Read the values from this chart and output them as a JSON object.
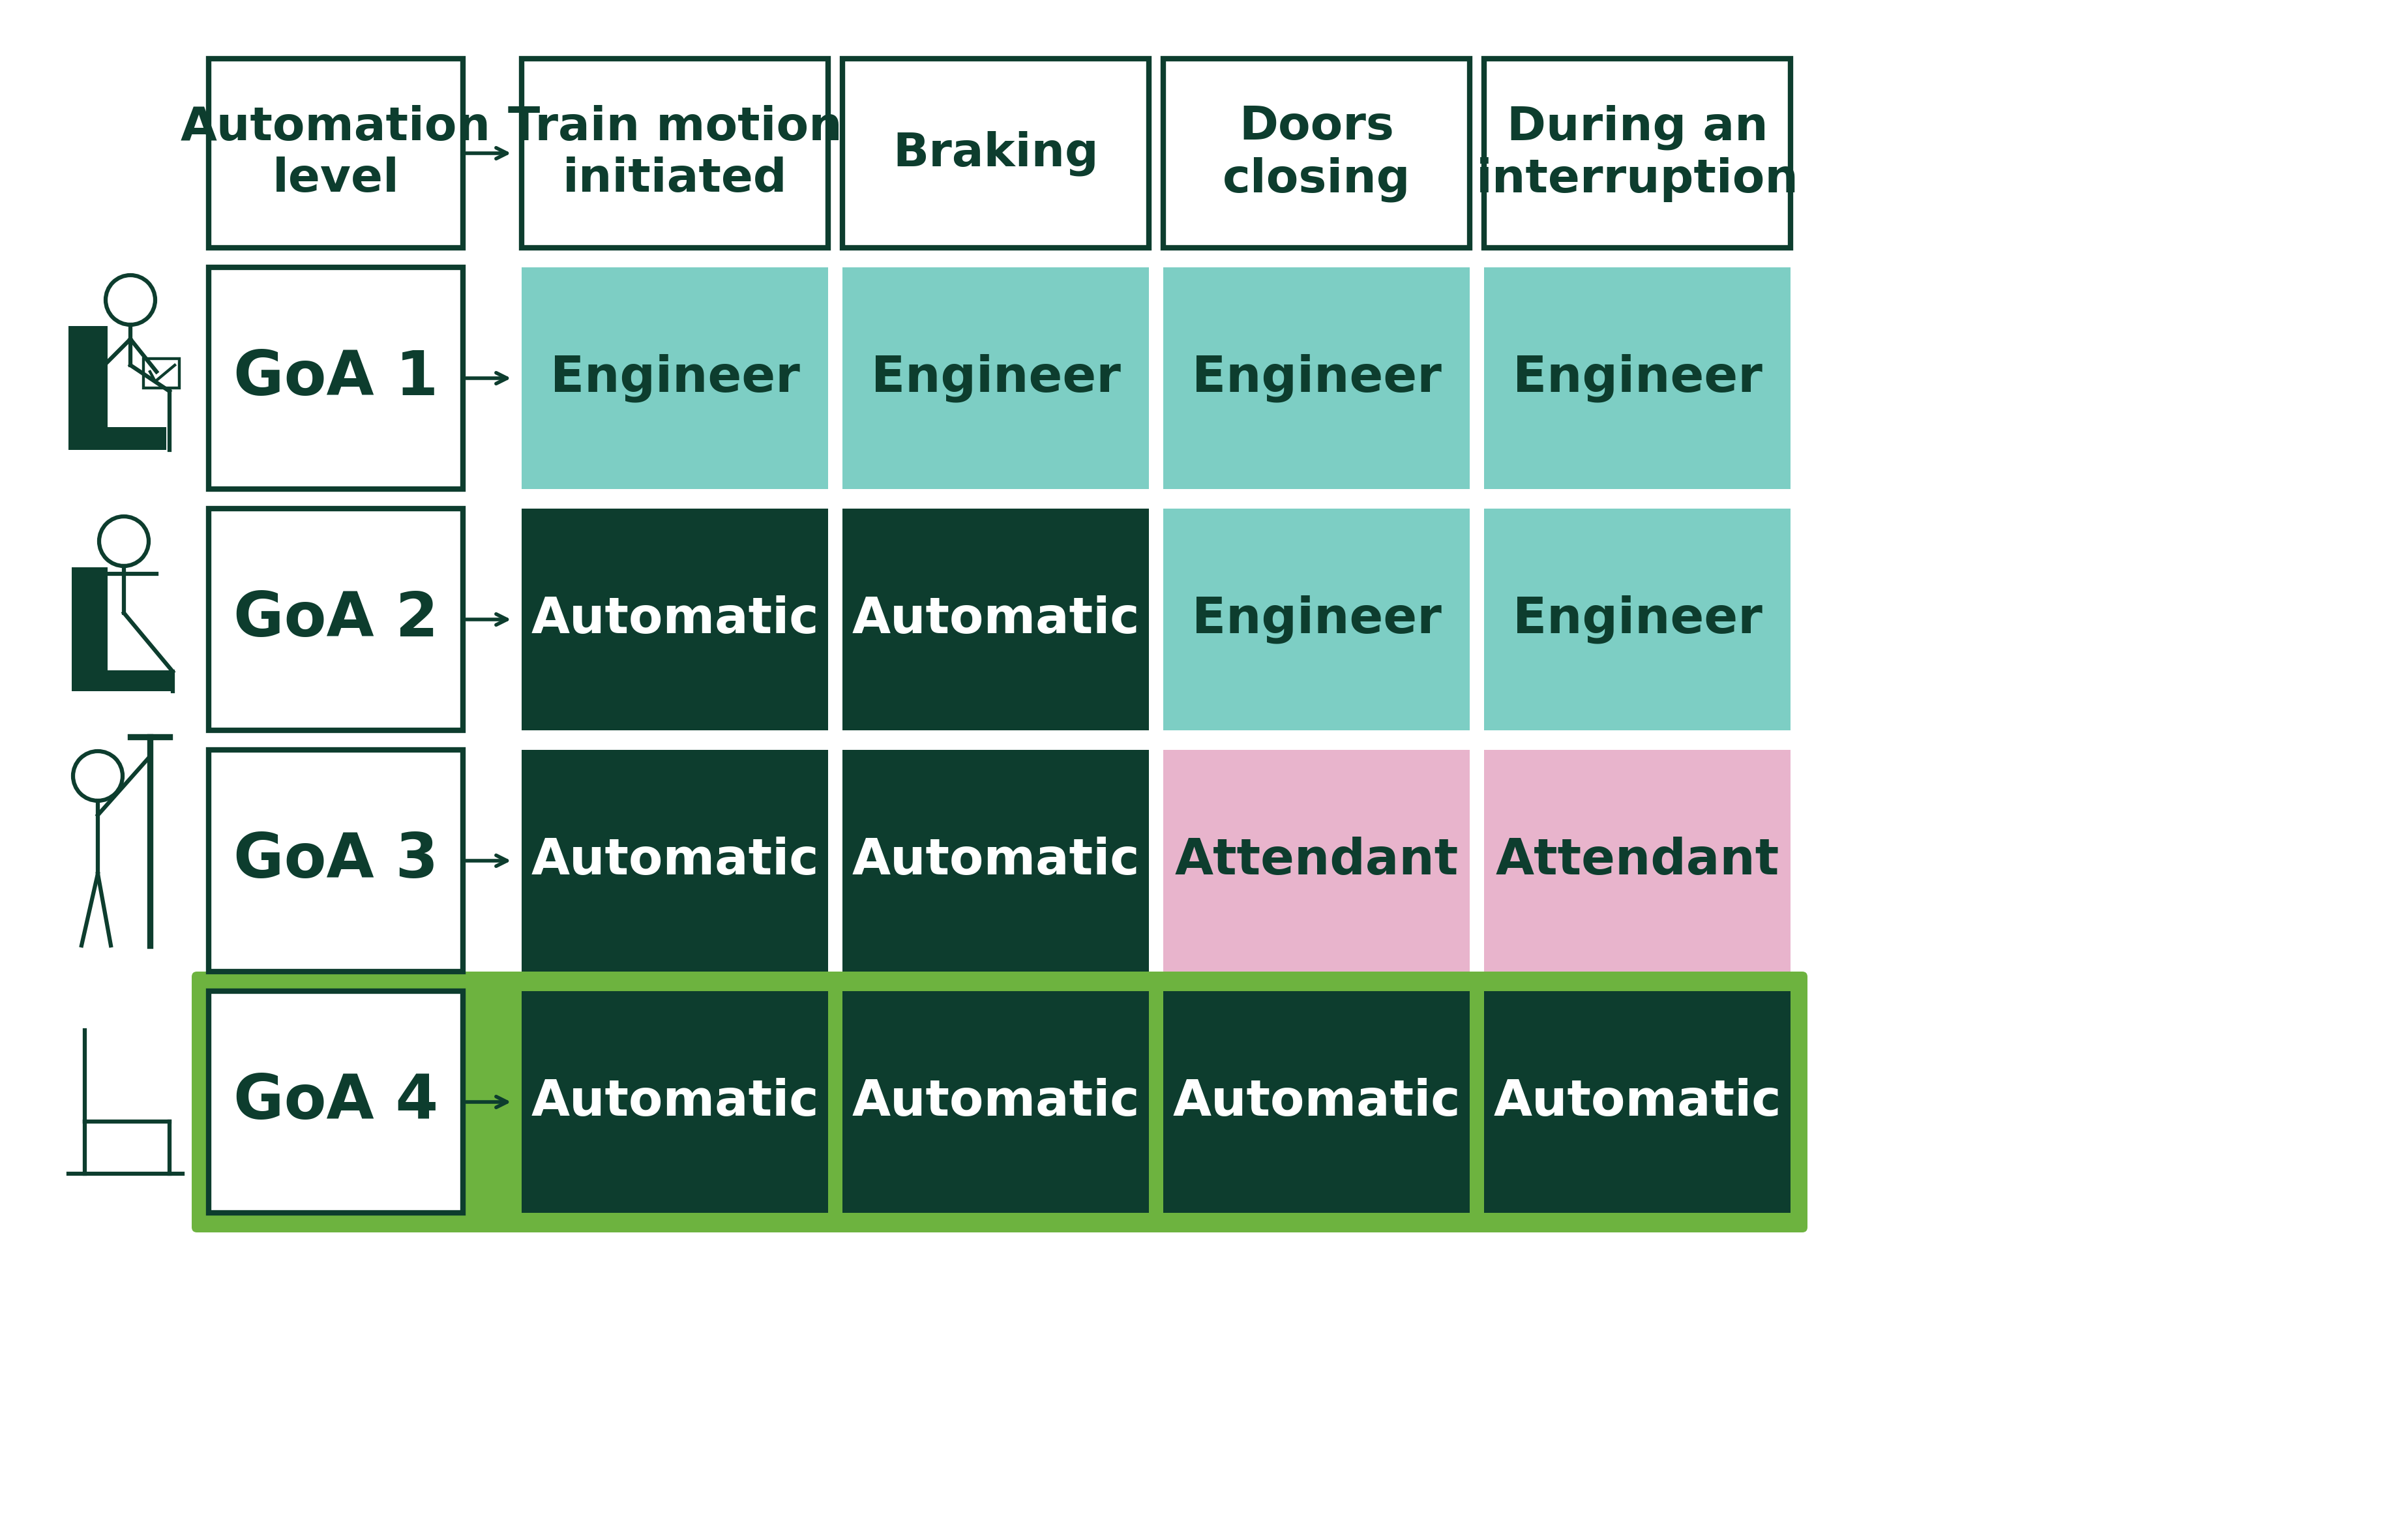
{
  "background_color": "#ffffff",
  "dark_green": "#0d3d2e",
  "light_teal": "#7dcec4",
  "pink": "#e8b4cc",
  "light_green_bg": "#6db33f",
  "header_bg": "#ffffff",
  "header_border": "#0d3d2e",
  "goa_border": "#0d3d2e",
  "col_headers": [
    "Automation\nlevel",
    "Train motion\ninitiated",
    "Braking",
    "Doors\nclosing",
    "During an\ninterruption"
  ],
  "rows": [
    {
      "label": "GoA 1",
      "goa4_bg": false,
      "cells": [
        {
          "text": "Engineer",
          "bg": "#7dcec4",
          "text_color": "#0d3d2e"
        },
        {
          "text": "Engineer",
          "bg": "#7dcec4",
          "text_color": "#0d3d2e"
        },
        {
          "text": "Engineer",
          "bg": "#7dcec4",
          "text_color": "#0d3d2e"
        },
        {
          "text": "Engineer",
          "bg": "#7dcec4",
          "text_color": "#0d3d2e"
        }
      ]
    },
    {
      "label": "GoA 2",
      "goa4_bg": false,
      "cells": [
        {
          "text": "Automatic",
          "bg": "#0d3d2e",
          "text_color": "#ffffff"
        },
        {
          "text": "Automatic",
          "bg": "#0d3d2e",
          "text_color": "#ffffff"
        },
        {
          "text": "Engineer",
          "bg": "#7dcec4",
          "text_color": "#0d3d2e"
        },
        {
          "text": "Engineer",
          "bg": "#7dcec4",
          "text_color": "#0d3d2e"
        }
      ]
    },
    {
      "label": "GoA 3",
      "goa4_bg": false,
      "cells": [
        {
          "text": "Automatic",
          "bg": "#0d3d2e",
          "text_color": "#ffffff"
        },
        {
          "text": "Automatic",
          "bg": "#0d3d2e",
          "text_color": "#ffffff"
        },
        {
          "text": "Attendant",
          "bg": "#e8b4cc",
          "text_color": "#0d3d2e"
        },
        {
          "text": "Attendant",
          "bg": "#e8b4cc",
          "text_color": "#0d3d2e"
        }
      ]
    },
    {
      "label": "GoA 4",
      "goa4_bg": true,
      "cells": [
        {
          "text": "Automatic",
          "bg": "#0d3d2e",
          "text_color": "#ffffff"
        },
        {
          "text": "Automatic",
          "bg": "#0d3d2e",
          "text_color": "#ffffff"
        },
        {
          "text": "Automatic",
          "bg": "#0d3d2e",
          "text_color": "#ffffff"
        },
        {
          "text": "Automatic",
          "bg": "#0d3d2e",
          "text_color": "#ffffff"
        }
      ]
    }
  ]
}
